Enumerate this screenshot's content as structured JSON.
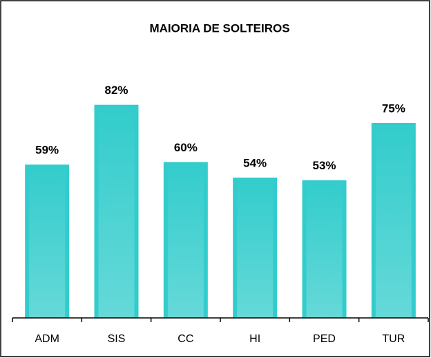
{
  "chart_data": {
    "type": "bar",
    "title": "MAIORIA  DE SOLTEIROS",
    "categories": [
      "ADM",
      "SIS",
      "CC",
      "HI",
      "PED",
      "TUR"
    ],
    "values": [
      59,
      82,
      60,
      54,
      53,
      75
    ],
    "value_labels": [
      "59%",
      "82%",
      "60%",
      "54%",
      "53%",
      "75%"
    ],
    "color": "#33cccc"
  }
}
